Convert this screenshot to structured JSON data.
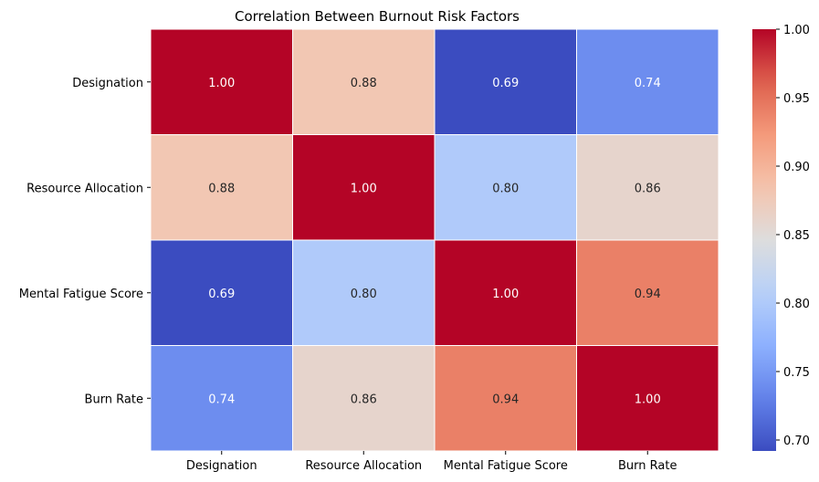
{
  "chart_data": {
    "type": "heatmap",
    "title": "Correlation Between Burnout Risk Factors",
    "xlabel": "",
    "ylabel": "",
    "x_labels": [
      "Designation",
      "Resource Allocation",
      "Mental Fatigue Score",
      "Burn Rate"
    ],
    "y_labels": [
      "Designation",
      "Resource Allocation",
      "Mental Fatigue Score",
      "Burn Rate"
    ],
    "values": [
      [
        1.0,
        0.88,
        0.69,
        0.74
      ],
      [
        0.88,
        1.0,
        0.8,
        0.86
      ],
      [
        0.69,
        0.8,
        1.0,
        0.94
      ],
      [
        0.74,
        0.86,
        0.94,
        1.0
      ]
    ],
    "annotation_format": "0.00",
    "colormap": "coolwarm",
    "colorbar": {
      "range": [
        0.692,
        1.0
      ],
      "ticks": [
        0.7,
        0.75,
        0.8,
        0.85,
        0.9,
        0.95,
        1.0
      ],
      "tick_labels": [
        "0.70",
        "0.75",
        "0.80",
        "0.85",
        "0.90",
        "0.95",
        "1.00"
      ],
      "placement": "right"
    },
    "grid": false,
    "cell_border_color": "#ffffff"
  }
}
